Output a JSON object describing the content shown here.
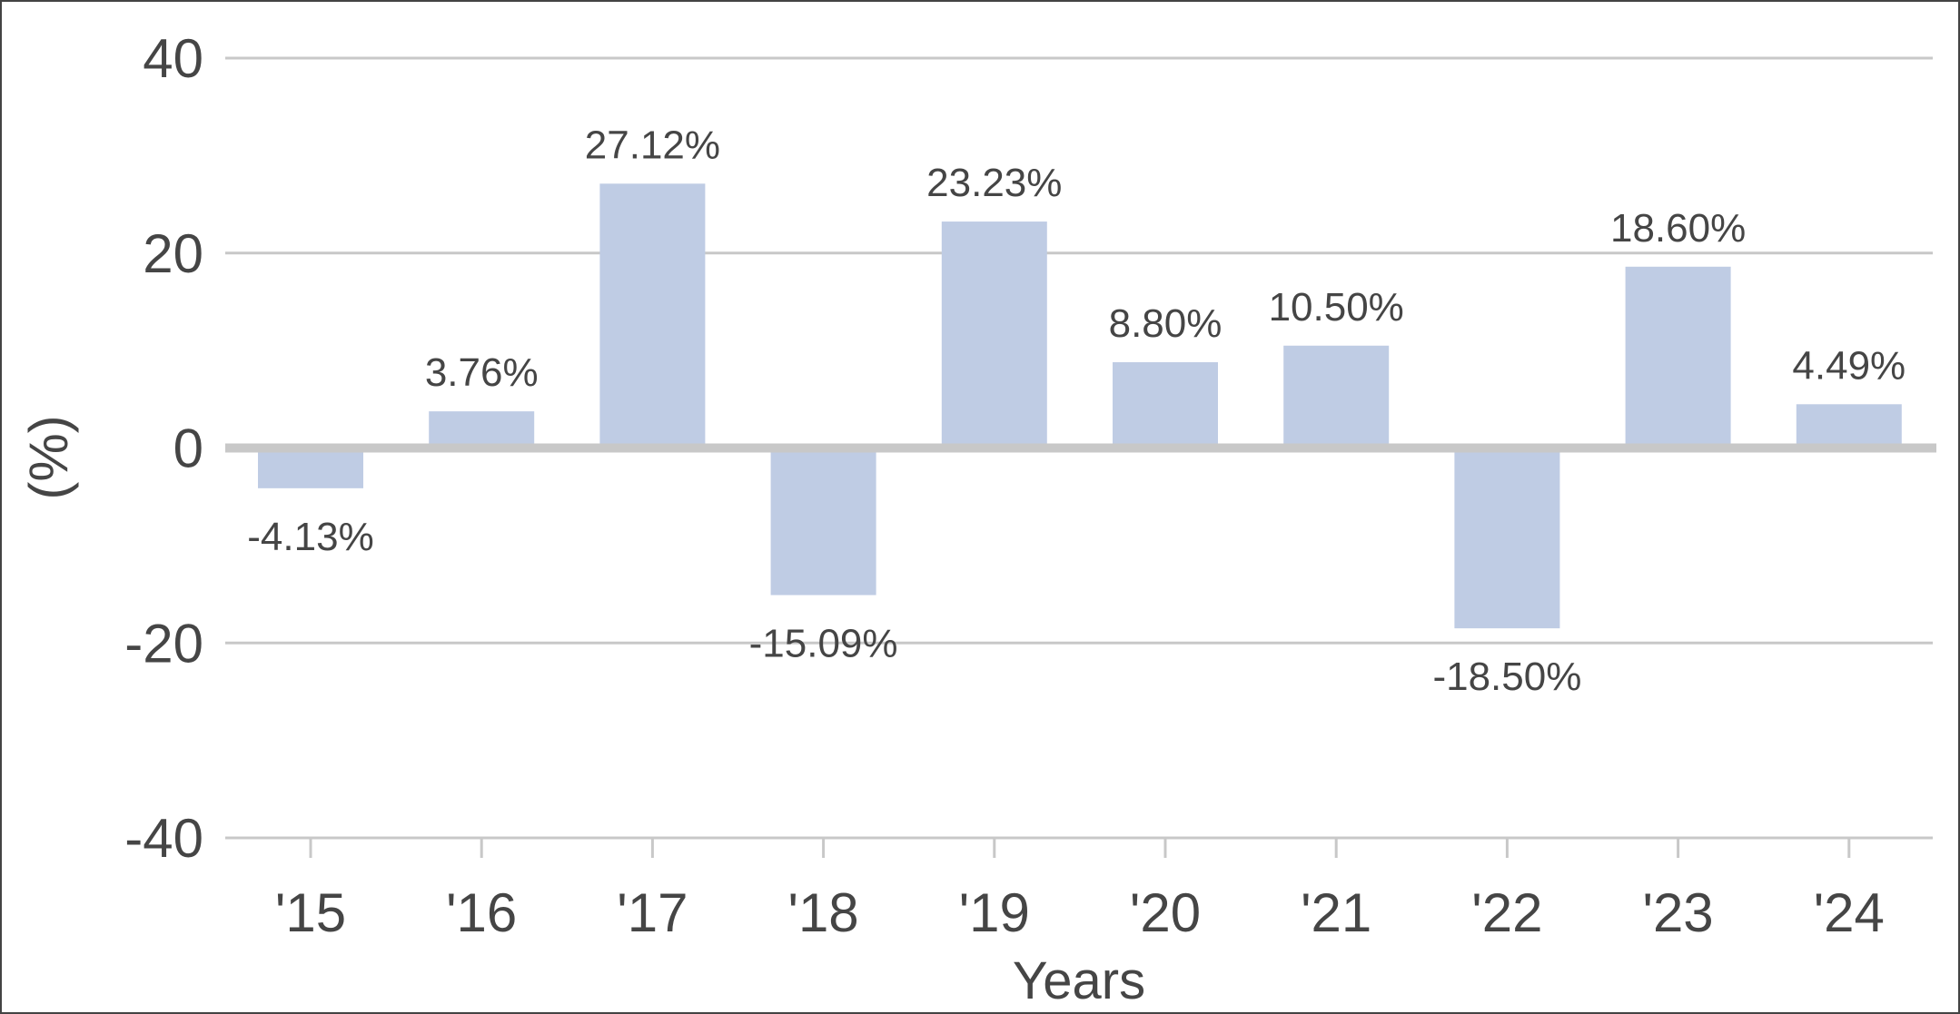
{
  "chart_data": {
    "type": "bar",
    "categories": [
      "'15",
      "'16",
      "'17",
      "'18",
      "'19",
      "'20",
      "'21",
      "'22",
      "'23",
      "'24"
    ],
    "values": [
      -4.13,
      3.76,
      27.12,
      -15.09,
      23.23,
      8.8,
      10.5,
      -18.5,
      18.6,
      4.49
    ],
    "data_labels": [
      "-4.13%",
      "3.76%",
      "27.12%",
      "-15.09%",
      "23.23%",
      "8.80%",
      "10.50%",
      "-18.50%",
      "18.60%",
      "4.49%"
    ],
    "yticks": [
      40,
      20,
      0,
      -20,
      -40
    ],
    "ytick_labels": [
      "40",
      "20",
      "0",
      "-20",
      "-40"
    ],
    "ylim": [
      -40,
      40
    ],
    "xlabel": "Years",
    "ylabel": "(%)",
    "grid": true,
    "bar_color": "#bfcce4",
    "grid_color": "#c8c8c8",
    "text_color": "#454545"
  }
}
